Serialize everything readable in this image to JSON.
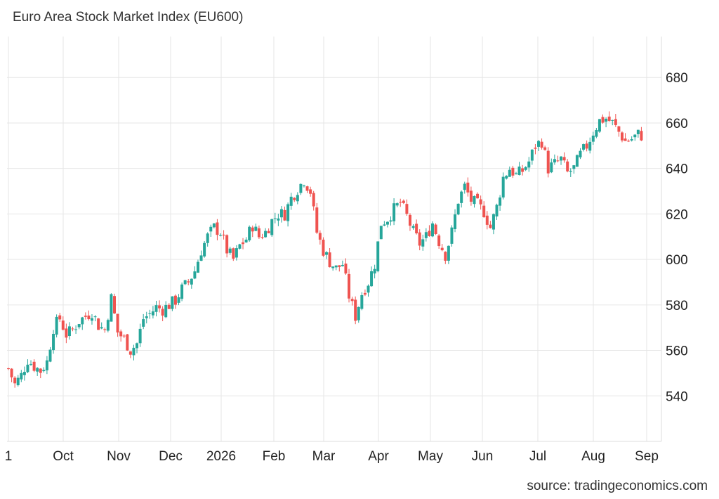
{
  "title": "Euro Area Stock Market Index (EU600)",
  "source": "source: tradingeconomics.com",
  "chart_data": {
    "type": "candlestick",
    "title": "Euro Area Stock Market Index (EU600)",
    "xlabel": "",
    "ylabel": "",
    "ylim": [
      520,
      698
    ],
    "y_ticks": [
      540,
      560,
      580,
      600,
      620,
      640,
      660,
      680
    ],
    "x_tick_labels": [
      "1",
      "Oct",
      "Nov",
      "Dec",
      "2026",
      "Feb",
      "Mar",
      "Apr",
      "May",
      "Jun",
      "Jul",
      "Aug",
      "Sep"
    ],
    "grid": true,
    "up_color": "#26a69a",
    "down_color": "#ef5350",
    "close_path": [
      552,
      545,
      549,
      556,
      553,
      551,
      555,
      570,
      574,
      567,
      569,
      573,
      575,
      577,
      571,
      569,
      583,
      568,
      565,
      560,
      563,
      574,
      576,
      579,
      578,
      580,
      582,
      587,
      590,
      595,
      604,
      610,
      614,
      612,
      604,
      600,
      606,
      609,
      615,
      610,
      612,
      617,
      620,
      620,
      627,
      631,
      635,
      630,
      612,
      604,
      599,
      596,
      598,
      584,
      575,
      585,
      590,
      598,
      616,
      618,
      622,
      625,
      619,
      612,
      607,
      610,
      616,
      608,
      602,
      612,
      626,
      632,
      626,
      624,
      621,
      614,
      623,
      636,
      640,
      637,
      639,
      643,
      650,
      652,
      640,
      642,
      644,
      638,
      640,
      646,
      650,
      656,
      661,
      662,
      660,
      656,
      652,
      653,
      655,
      654
    ]
  }
}
